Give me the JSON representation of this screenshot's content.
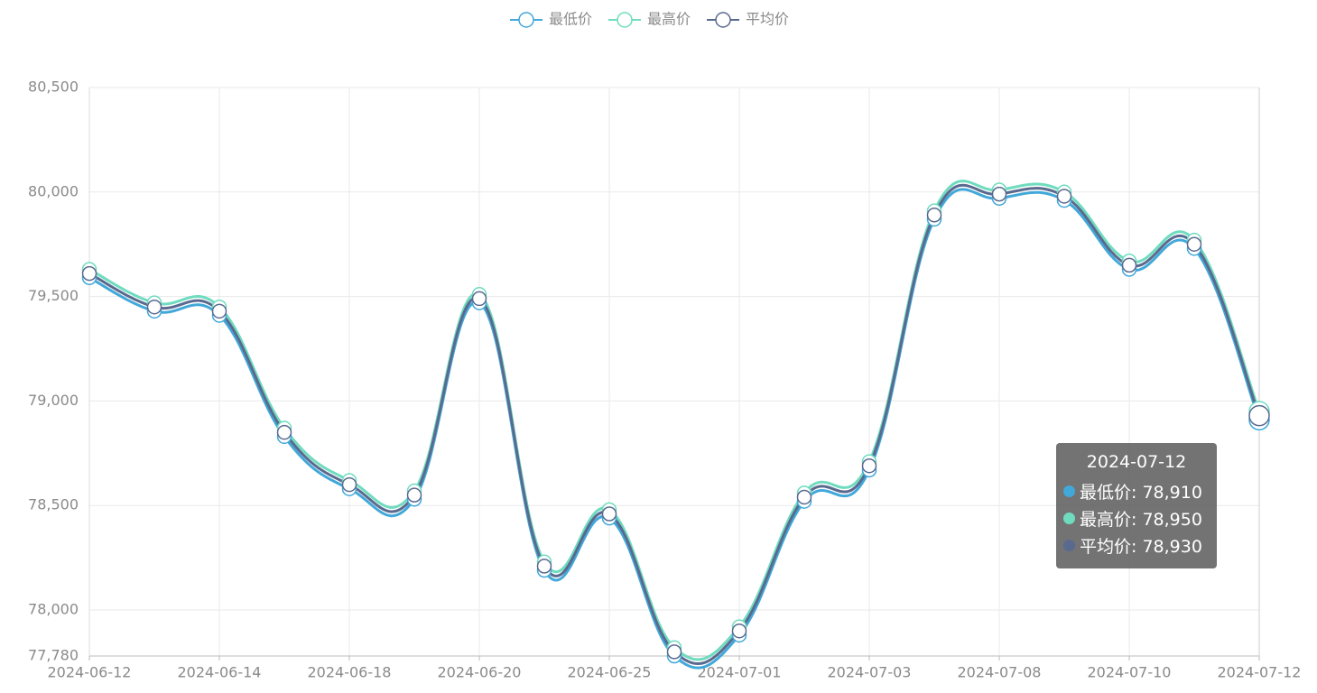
{
  "chart_data": {
    "type": "line",
    "smooth": true,
    "grid": true,
    "categories": [
      "2024-06-12",
      null,
      "2024-06-14",
      null,
      "2024-06-18",
      null,
      "2024-06-20",
      null,
      "2024-06-25",
      null,
      "2024-07-01",
      null,
      "2024-07-03",
      null,
      "2024-07-08",
      null,
      "2024-07-10",
      null,
      "2024-07-12"
    ],
    "series": [
      {
        "name": "最低价",
        "color": "#41a8d9",
        "values": [
          79590,
          79430,
          79410,
          78830,
          78580,
          78530,
          79470,
          78190,
          78440,
          77780,
          77880,
          78520,
          78670,
          79870,
          79970,
          79960,
          79630,
          79730,
          78910
        ]
      },
      {
        "name": "最高价",
        "color": "#6fdcbf",
        "values": [
          79630,
          79470,
          79450,
          78870,
          78620,
          78570,
          79510,
          78230,
          78480,
          77820,
          77920,
          78560,
          78710,
          79910,
          80010,
          80000,
          79670,
          79770,
          78950
        ]
      },
      {
        "name": "平均价",
        "color": "#5a6a8f",
        "values": [
          79610,
          79450,
          79430,
          78850,
          78600,
          78550,
          79490,
          78210,
          78460,
          77800,
          77900,
          78540,
          78690,
          79890,
          79990,
          79980,
          79650,
          79750,
          78930
        ]
      }
    ],
    "ylim": [
      77780,
      80500
    ],
    "yticks": [
      {
        "value": 77780,
        "label": "77,780"
      },
      {
        "value": 78000,
        "label": "78,000"
      },
      {
        "value": 78500,
        "label": "78,500"
      },
      {
        "value": 79000,
        "label": "79,000"
      },
      {
        "value": 79500,
        "label": "79,500"
      },
      {
        "value": 80000,
        "label": "80,000"
      },
      {
        "value": 80500,
        "label": "80,500"
      }
    ],
    "tooltip": {
      "category": "2024-07-12",
      "lines": [
        "最低价: 78,910",
        "最高价: 78,950",
        "平均价: 78,930"
      ]
    }
  }
}
